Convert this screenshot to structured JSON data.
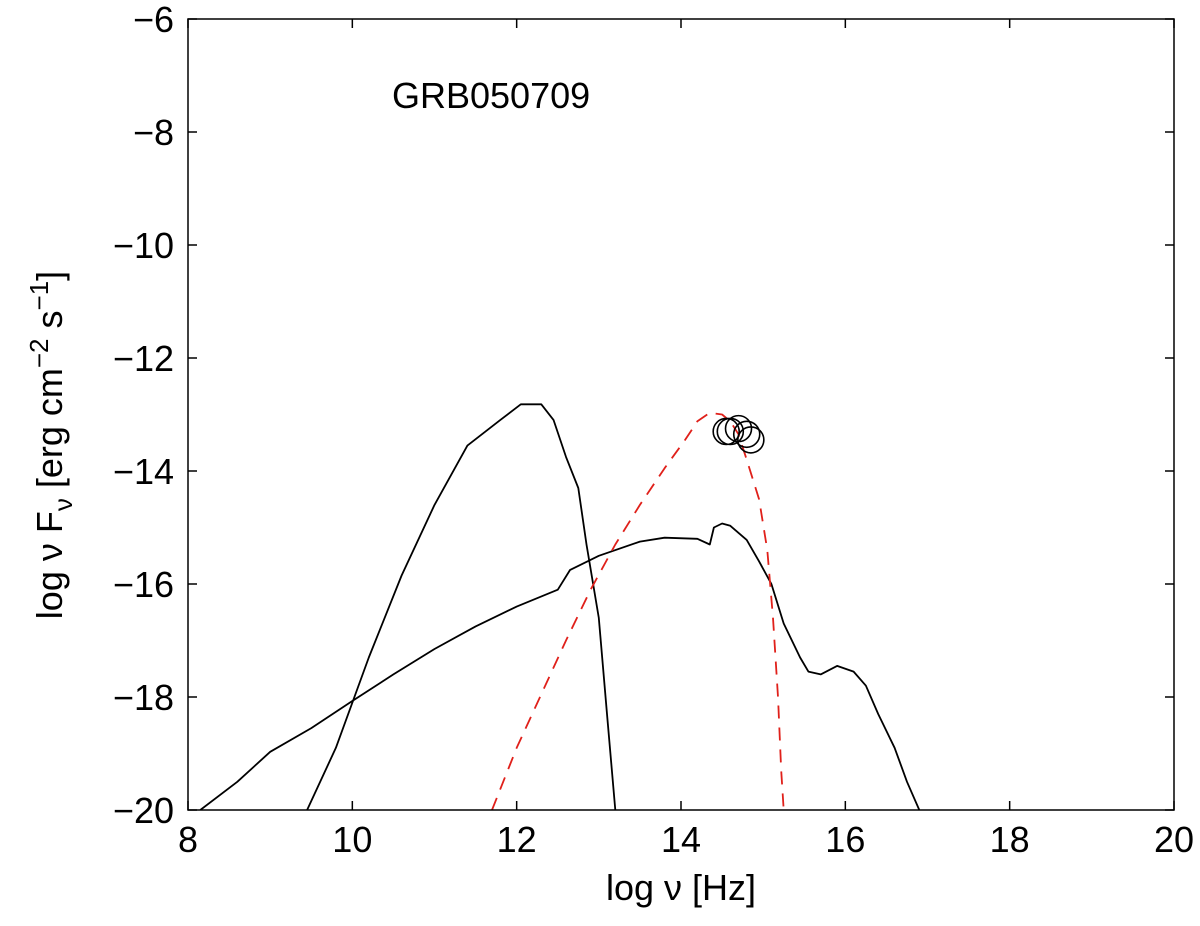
{
  "chart_data": {
    "type": "line",
    "annotation": "GRB050709",
    "xlabel": "log ν [Hz]",
    "ylabel": {
      "prefix": "log ν F",
      "sub_nu": "ν",
      "mid": " [erg cm",
      "sup_m2": "−2",
      "mid2": " s",
      "sup_m1": "−1",
      "suffix": "]"
    },
    "xlim": [
      8,
      20
    ],
    "ylim": [
      -20,
      -6
    ],
    "xticks": [
      {
        "v": 8,
        "label": "8"
      },
      {
        "v": 10,
        "label": "10"
      },
      {
        "v": 12,
        "label": "12"
      },
      {
        "v": 14,
        "label": "14"
      },
      {
        "v": 16,
        "label": "16"
      },
      {
        "v": 18,
        "label": "18"
      },
      {
        "v": 20,
        "label": "20"
      }
    ],
    "yticks": [
      {
        "v": -6,
        "label": "−6"
      },
      {
        "v": -8,
        "label": "−8"
      },
      {
        "v": -10,
        "label": "−10"
      },
      {
        "v": -12,
        "label": "−12"
      },
      {
        "v": -14,
        "label": "−14"
      },
      {
        "v": -16,
        "label": "−16"
      },
      {
        "v": -18,
        "label": "−18"
      },
      {
        "v": -20,
        "label": "−20"
      }
    ],
    "grid": false,
    "series": [
      {
        "style": "solid",
        "color": "#000000",
        "points": [
          [
            9.45,
            -20.0
          ],
          [
            9.8,
            -18.9
          ],
          [
            10.2,
            -17.3
          ],
          [
            10.6,
            -15.85
          ],
          [
            11.0,
            -14.6
          ],
          [
            11.4,
            -13.55
          ],
          [
            11.8,
            -13.1
          ],
          [
            12.05,
            -12.82
          ],
          [
            12.3,
            -12.82
          ],
          [
            12.45,
            -13.1
          ],
          [
            12.6,
            -13.75
          ],
          [
            12.75,
            -14.3
          ],
          [
            12.85,
            -15.3
          ],
          [
            13.0,
            -16.6
          ],
          [
            13.1,
            -18.3
          ],
          [
            13.2,
            -20.0
          ]
        ]
      },
      {
        "style": "solid",
        "color": "#000000",
        "points": [
          [
            8.15,
            -20.0
          ],
          [
            8.6,
            -19.5
          ],
          [
            9.0,
            -18.97
          ],
          [
            9.5,
            -18.55
          ],
          [
            10.0,
            -18.07
          ],
          [
            10.5,
            -17.6
          ],
          [
            11.0,
            -17.15
          ],
          [
            11.5,
            -16.75
          ],
          [
            12.0,
            -16.4
          ],
          [
            12.5,
            -16.1
          ],
          [
            12.65,
            -15.75
          ],
          [
            13.0,
            -15.5
          ],
          [
            13.5,
            -15.25
          ],
          [
            13.8,
            -15.18
          ],
          [
            14.2,
            -15.2
          ],
          [
            14.35,
            -15.3
          ],
          [
            14.4,
            -15.0
          ],
          [
            14.5,
            -14.93
          ],
          [
            14.6,
            -14.97
          ],
          [
            14.8,
            -15.22
          ],
          [
            14.95,
            -15.6
          ],
          [
            15.1,
            -16.0
          ],
          [
            15.25,
            -16.7
          ],
          [
            15.45,
            -17.3
          ],
          [
            15.55,
            -17.55
          ],
          [
            15.7,
            -17.6
          ],
          [
            15.9,
            -17.45
          ],
          [
            16.1,
            -17.55
          ],
          [
            16.25,
            -17.8
          ],
          [
            16.4,
            -18.3
          ],
          [
            16.6,
            -18.9
          ],
          [
            16.75,
            -19.5
          ],
          [
            16.9,
            -20.0
          ]
        ]
      },
      {
        "style": "dashed",
        "color": "#e0201a",
        "points": [
          [
            11.7,
            -20.0
          ],
          [
            12.0,
            -18.9
          ],
          [
            12.3,
            -17.95
          ],
          [
            12.6,
            -17.0
          ],
          [
            12.9,
            -16.1
          ],
          [
            13.2,
            -15.3
          ],
          [
            13.5,
            -14.6
          ],
          [
            13.8,
            -13.95
          ],
          [
            14.05,
            -13.45
          ],
          [
            14.2,
            -13.12
          ],
          [
            14.35,
            -12.97
          ],
          [
            14.5,
            -13.0
          ],
          [
            14.6,
            -13.12
          ],
          [
            14.7,
            -13.35
          ],
          [
            14.8,
            -13.8
          ],
          [
            14.95,
            -14.5
          ],
          [
            15.05,
            -15.4
          ],
          [
            15.12,
            -16.6
          ],
          [
            15.18,
            -18.0
          ],
          [
            15.22,
            -19.3
          ],
          [
            15.25,
            -20.0
          ]
        ]
      }
    ],
    "data_points": {
      "marker": "open-circle",
      "points": [
        [
          14.7,
          -13.25
        ],
        [
          14.6,
          -13.3
        ],
        [
          14.55,
          -13.3
        ],
        [
          14.8,
          -13.35
        ],
        [
          14.85,
          -13.45
        ]
      ]
    }
  }
}
